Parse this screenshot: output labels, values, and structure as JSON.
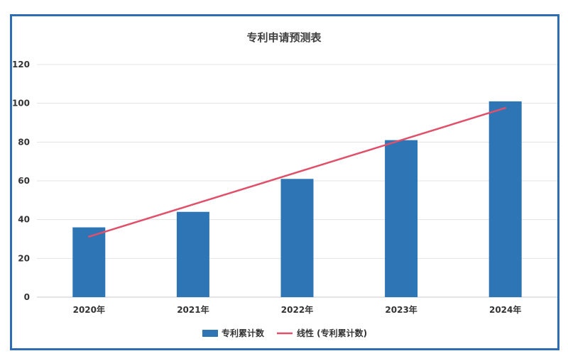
{
  "chart_data": {
    "type": "bar",
    "title": "专利申请预测表",
    "categories": [
      "2020年",
      "2021年",
      "2022年",
      "2023年",
      "2024年"
    ],
    "series": [
      {
        "name": "专利累计数",
        "type": "bar",
        "values": [
          36,
          44,
          61,
          81,
          101
        ],
        "color": "#2e75b6"
      },
      {
        "name": "线性 (专利累计数)",
        "type": "line",
        "values": [
          31.2,
          47.8,
          64.4,
          81.0,
          97.6
        ],
        "color": "#e0506a"
      }
    ],
    "ylim": [
      0,
      120
    ],
    "yticks": [
      0,
      20,
      40,
      60,
      80,
      100,
      120
    ],
    "xlabel": "",
    "ylabel": "",
    "grid": true,
    "legend": "bottom"
  }
}
